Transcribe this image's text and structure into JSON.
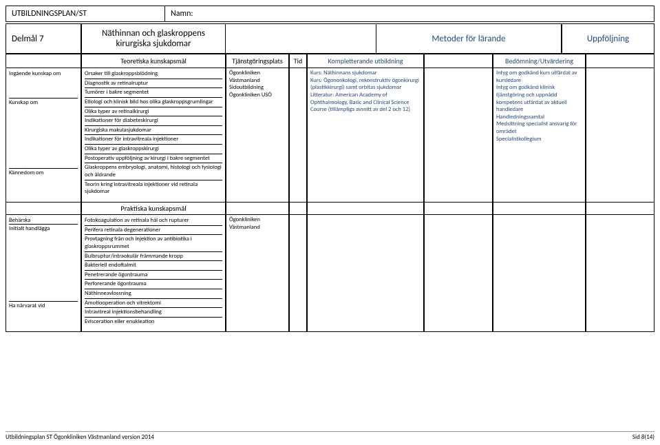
{
  "header": {
    "title": "UTBILDNINGSPLAN/ST",
    "name_label": "Namn:"
  },
  "titlebar": {
    "delmal": "Delmål 7",
    "topic": "Näthinnan och glaskroppens kirurgiska sjukdomar",
    "metoder": "Metoder för lärande",
    "uppfoljning": "Uppföljning"
  },
  "columns": {
    "c1": "",
    "c2": "Teoretiska kunskapsmål",
    "c3": "Tjänstgöringsplats",
    "c4": "Tid",
    "c5": "Kompletterande utbildning",
    "c6": "",
    "c7": "Bedömning/Utvärdering",
    "c8": ""
  },
  "section1": {
    "left": [
      {
        "h": "Ingående kunskap om",
        "rows": [
          "Orsaker till glaskroppsblödning",
          "Diagnostik av retinalruptur",
          "Tumörer i bakre segmentet"
        ]
      },
      {
        "h": "Kunskap om",
        "rows": [
          "Etiologi och klinisk bild hos olika glaskroppsgrumlingar",
          "Olika typer av retinalkirurgi",
          "Indikationer för diabeteskirurgi",
          "Kirurgiska makulasjukdomar",
          "Indikationer för intravitreala injektioner",
          "Olika typer av glaskroppskirurgi",
          "Postoperativ uppföljning av kirurgi i bakre segmentet"
        ]
      },
      {
        "h": "Kännedom om",
        "rows": [
          "Glaskroppens embryologi, anatomi, histologi och fysiologi och åldrande",
          "Teorin kring intravitreala injektioner vid retinala sjukdomar"
        ]
      }
    ],
    "plats": "Ögonkliniken Västmanland\nSidoutbildning Ögonkliniken USÖ",
    "kompl": "Kurs: Näthinnans sjukdomar\nKurs: Ögononkologi, rekonstruktiv ögonkirurgi (plastikkirurgi) samt orbitas sjukdomar\nLitteratur: American Academy of Ophthalmology, Basic and Clinical Science Course (tillämpliga avsnitt av del 2 och 12)",
    "bedom": "Intyg om godkänd kurs utfärdat av kursledare\nIntyg om godkänd klinisk tjänstgöring och uppnådd kompetens utfärdat av aktuell handledare\nHandledningssamtal\nMedsittning specialist ansvarig för området\nSpecialistkollegium"
  },
  "praktiska_header": "Praktiska kunskapsmål",
  "section2": {
    "left": [
      {
        "h": "Behärska",
        "rows": [
          "Fotokoagulation av retinala hål och rupturer"
        ]
      },
      {
        "h": "Initialt handlägga",
        "rows": [
          "Perifera retinala degenerationer",
          "Provtagning från och injektion av antibiotika i glaskroppsrummet",
          "Bulbruptur/intraokulär främmande kropp",
          "Bakteriell endoftalmit",
          "Penetrerande ögontrauma",
          "Perforerande ögontrauma",
          "Näthinneavlossning"
        ]
      },
      {
        "h": "Ha närvarat vid",
        "rows": [
          "Amotiooperation och vitrektomi",
          "Intravitreal injektionsbehandling",
          "Evisceration eller enukleation"
        ]
      }
    ],
    "plats": "Ögonkliniken Västmanland"
  },
  "footer": {
    "left": "Utbildningsplan ST Ögonkliniken Västmanland version 2014",
    "right": "Sid 8(14)"
  },
  "colors": {
    "blue": "#1f497d"
  }
}
